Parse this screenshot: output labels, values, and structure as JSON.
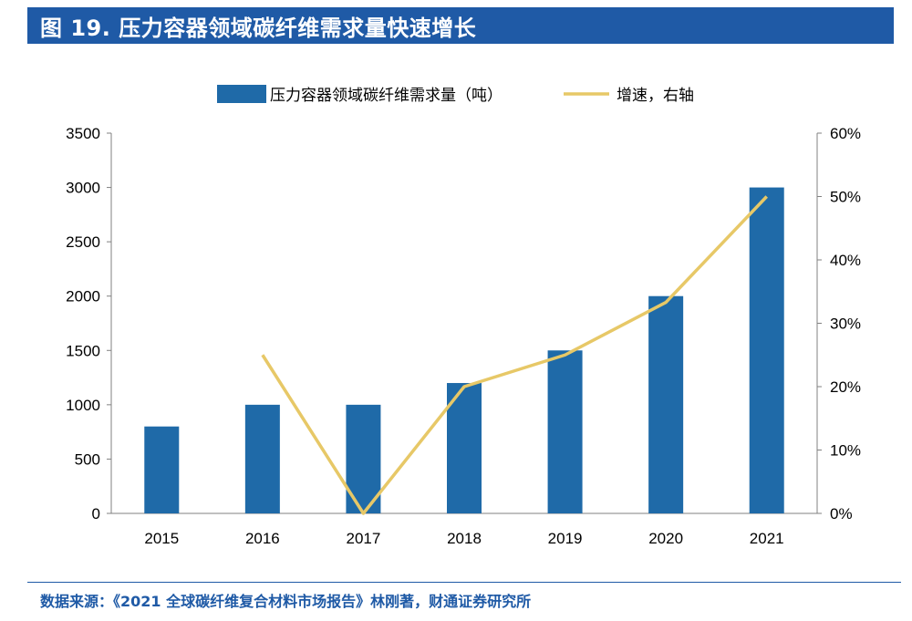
{
  "header": {
    "title": "图 19. 压力容器领域碳纤维需求量快速增长"
  },
  "colors": {
    "bar": "#1f6aa8",
    "line": "#e7c867",
    "accent": "#1f5aa6",
    "axis": "#808080"
  },
  "chart_data": {
    "type": "bar+line",
    "categories": [
      "2015",
      "2016",
      "2017",
      "2018",
      "2019",
      "2020",
      "2021"
    ],
    "series": [
      {
        "name": "压力容器领域碳纤维需求量（吨）",
        "type": "bar",
        "axis": "left",
        "values": [
          800,
          1000,
          1000,
          1200,
          1500,
          2000,
          3000
        ]
      },
      {
        "name": "增速，右轴",
        "type": "line",
        "axis": "right",
        "values": [
          null,
          25,
          0,
          20,
          25,
          33.3,
          50
        ]
      }
    ],
    "y_left": {
      "range": [
        0,
        3500
      ],
      "ticks": [
        "0",
        "500",
        "1000",
        "1500",
        "2000",
        "2500",
        "3000",
        "3500"
      ]
    },
    "y_right": {
      "range": [
        0,
        60
      ],
      "ticks": [
        "0%",
        "10%",
        "20%",
        "30%",
        "40%",
        "50%",
        "60%"
      ]
    },
    "legend_position": "top-center",
    "grid": false
  },
  "footer": {
    "source": "数据来源：《2021 全球碳纤维复合材料市场报告》林刚著，财通证券研究所"
  }
}
